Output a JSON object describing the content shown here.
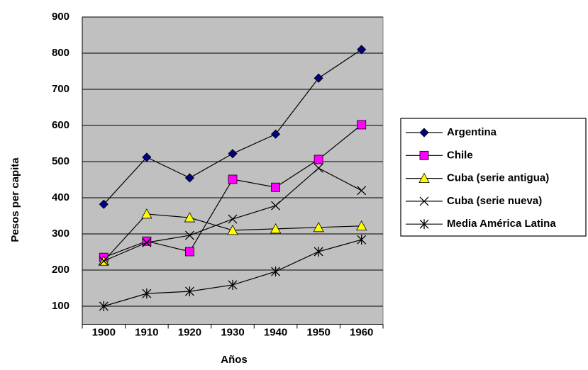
{
  "chart_data": {
    "type": "line",
    "x_label": "Años",
    "y_label": "Pesos per capita",
    "categories": [
      "1900",
      "1910",
      "1920",
      "1930",
      "1940",
      "1950",
      "1960"
    ],
    "ylim": [
      50,
      900
    ],
    "yticks": [
      100,
      200,
      300,
      400,
      500,
      600,
      700,
      800,
      900
    ],
    "grid": true,
    "series": [
      {
        "name": "Argentina",
        "color": "#000080",
        "marker": "diamond",
        "values": [
          382,
          512,
          455,
          522,
          576,
          731,
          810
        ]
      },
      {
        "name": "Chile",
        "color": "#ff00ff",
        "marker": "square",
        "values": [
          235,
          280,
          251,
          451,
          429,
          506,
          602
        ]
      },
      {
        "name": "Cuba (serie antigua)",
        "color": "#ffff00",
        "marker": "triangle",
        "values": [
          225,
          355,
          345,
          310,
          314,
          318,
          322
        ]
      },
      {
        "name": "Cuba (serie nueva)",
        "color": "#000000",
        "marker": "x",
        "values": [
          225,
          276,
          296,
          341,
          378,
          482,
          420
        ]
      },
      {
        "name": "Media América Latina",
        "color": "#000000",
        "marker": "star",
        "values": [
          100,
          135,
          141,
          159,
          196,
          251,
          284
        ]
      }
    ]
  }
}
